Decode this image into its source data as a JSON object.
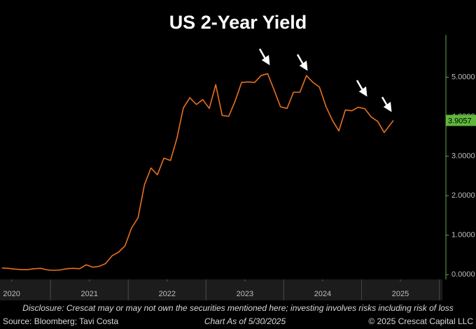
{
  "chart_data": {
    "type": "line",
    "title": "US 2-Year Yield",
    "x": [
      2020.375,
      2020.458,
      2020.542,
      2020.625,
      2020.708,
      2020.792,
      2020.875,
      2020.958,
      2021.042,
      2021.125,
      2021.208,
      2021.292,
      2021.375,
      2021.458,
      2021.542,
      2021.625,
      2021.708,
      2021.792,
      2021.875,
      2021.958,
      2022.042,
      2022.125,
      2022.208,
      2022.292,
      2022.375,
      2022.458,
      2022.542,
      2022.625,
      2022.708,
      2022.792,
      2022.875,
      2022.958,
      2023.042,
      2023.125,
      2023.208,
      2023.292,
      2023.375,
      2023.458,
      2023.542,
      2023.625,
      2023.708,
      2023.792,
      2023.875,
      2023.958,
      2024.042,
      2024.125,
      2024.208,
      2024.292,
      2024.375,
      2024.458,
      2024.542,
      2024.625,
      2024.708,
      2024.792,
      2024.875,
      2024.958,
      2025.042,
      2025.125,
      2025.208,
      2025.292,
      2025.41
    ],
    "series": [
      {
        "name": "US 2-Year Yield",
        "color": "#e8701e",
        "values": [
          0.17,
          0.16,
          0.14,
          0.13,
          0.13,
          0.15,
          0.16,
          0.12,
          0.11,
          0.12,
          0.15,
          0.16,
          0.15,
          0.25,
          0.19,
          0.21,
          0.28,
          0.48,
          0.57,
          0.73,
          1.18,
          1.44,
          2.28,
          2.7,
          2.53,
          2.95,
          2.89,
          3.45,
          4.22,
          4.48,
          4.31,
          4.43,
          4.21,
          4.81,
          4.03,
          4.01,
          4.4,
          4.87,
          4.88,
          4.87,
          5.04,
          5.09,
          4.68,
          4.25,
          4.21,
          4.62,
          4.62,
          5.04,
          4.87,
          4.75,
          4.26,
          3.91,
          3.64,
          4.17,
          4.15,
          4.24,
          4.2,
          3.99,
          3.88,
          3.6,
          3.9057
        ]
      }
    ],
    "xlim": [
      2020.35,
      2026.04
    ],
    "xticks": [
      {
        "value": 2020.5,
        "label": "2020"
      },
      {
        "value": 2021.5,
        "label": "2021"
      },
      {
        "value": 2022.5,
        "label": "2022"
      },
      {
        "value": 2023.5,
        "label": "2023"
      },
      {
        "value": 2024.5,
        "label": "2024"
      },
      {
        "value": 2025.5,
        "label": "2025"
      }
    ],
    "ylim": [
      -0.12,
      6.07
    ],
    "yticks": [
      {
        "value": 0,
        "label": "0.0000"
      },
      {
        "value": 1,
        "label": "1.0000"
      },
      {
        "value": 2,
        "label": "2.0000"
      },
      {
        "value": 3,
        "label": "3.0000"
      },
      {
        "value": 4,
        "label": "4.0000"
      },
      {
        "value": 5,
        "label": "5.0000"
      }
    ],
    "disclosure": "Disclosure: Crescat may or may not own the securities mentioned here; investing involves risks including risk of loss",
    "source": "Source: Bloomberg; Tavi Costa",
    "date_note": "Chart As of 5/30/2025",
    "copyright": "© 2025 Crescat Capital LLC"
  }
}
